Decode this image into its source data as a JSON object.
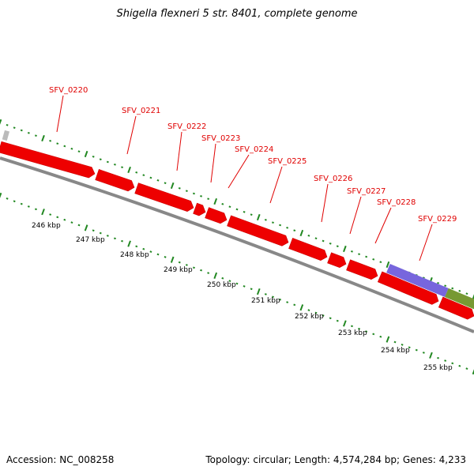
{
  "title": "Shigella flexneri 5 str. 8401, complete genome",
  "footer": {
    "accession": "Accession: NC_008258",
    "summary": "Topology: circular; Length: 4,574,284 bp; Genes: 4,233"
  },
  "colors": {
    "gene": "#ee0000",
    "gene_label": "#e00000",
    "backbone": "#888888",
    "ticks": "#228822",
    "feature_purple": "#7766dd",
    "feature_olive": "#779933",
    "feature_gray": "#bbbbbb"
  },
  "genes": [
    "SFV_0220",
    "SFV_0221",
    "SFV_0222",
    "SFV_0223",
    "SFV_0224",
    "SFV_0225",
    "SFV_0226",
    "SFV_0227",
    "SFV_0228",
    "SFV_0229"
  ],
  "kbp_labels": [
    "246 kbp",
    "247 kbp",
    "248 kbp",
    "249 kbp",
    "250 kbp",
    "251 kbp",
    "252 kbp",
    "253 kbp",
    "254 kbp",
    "255 kbp"
  ]
}
